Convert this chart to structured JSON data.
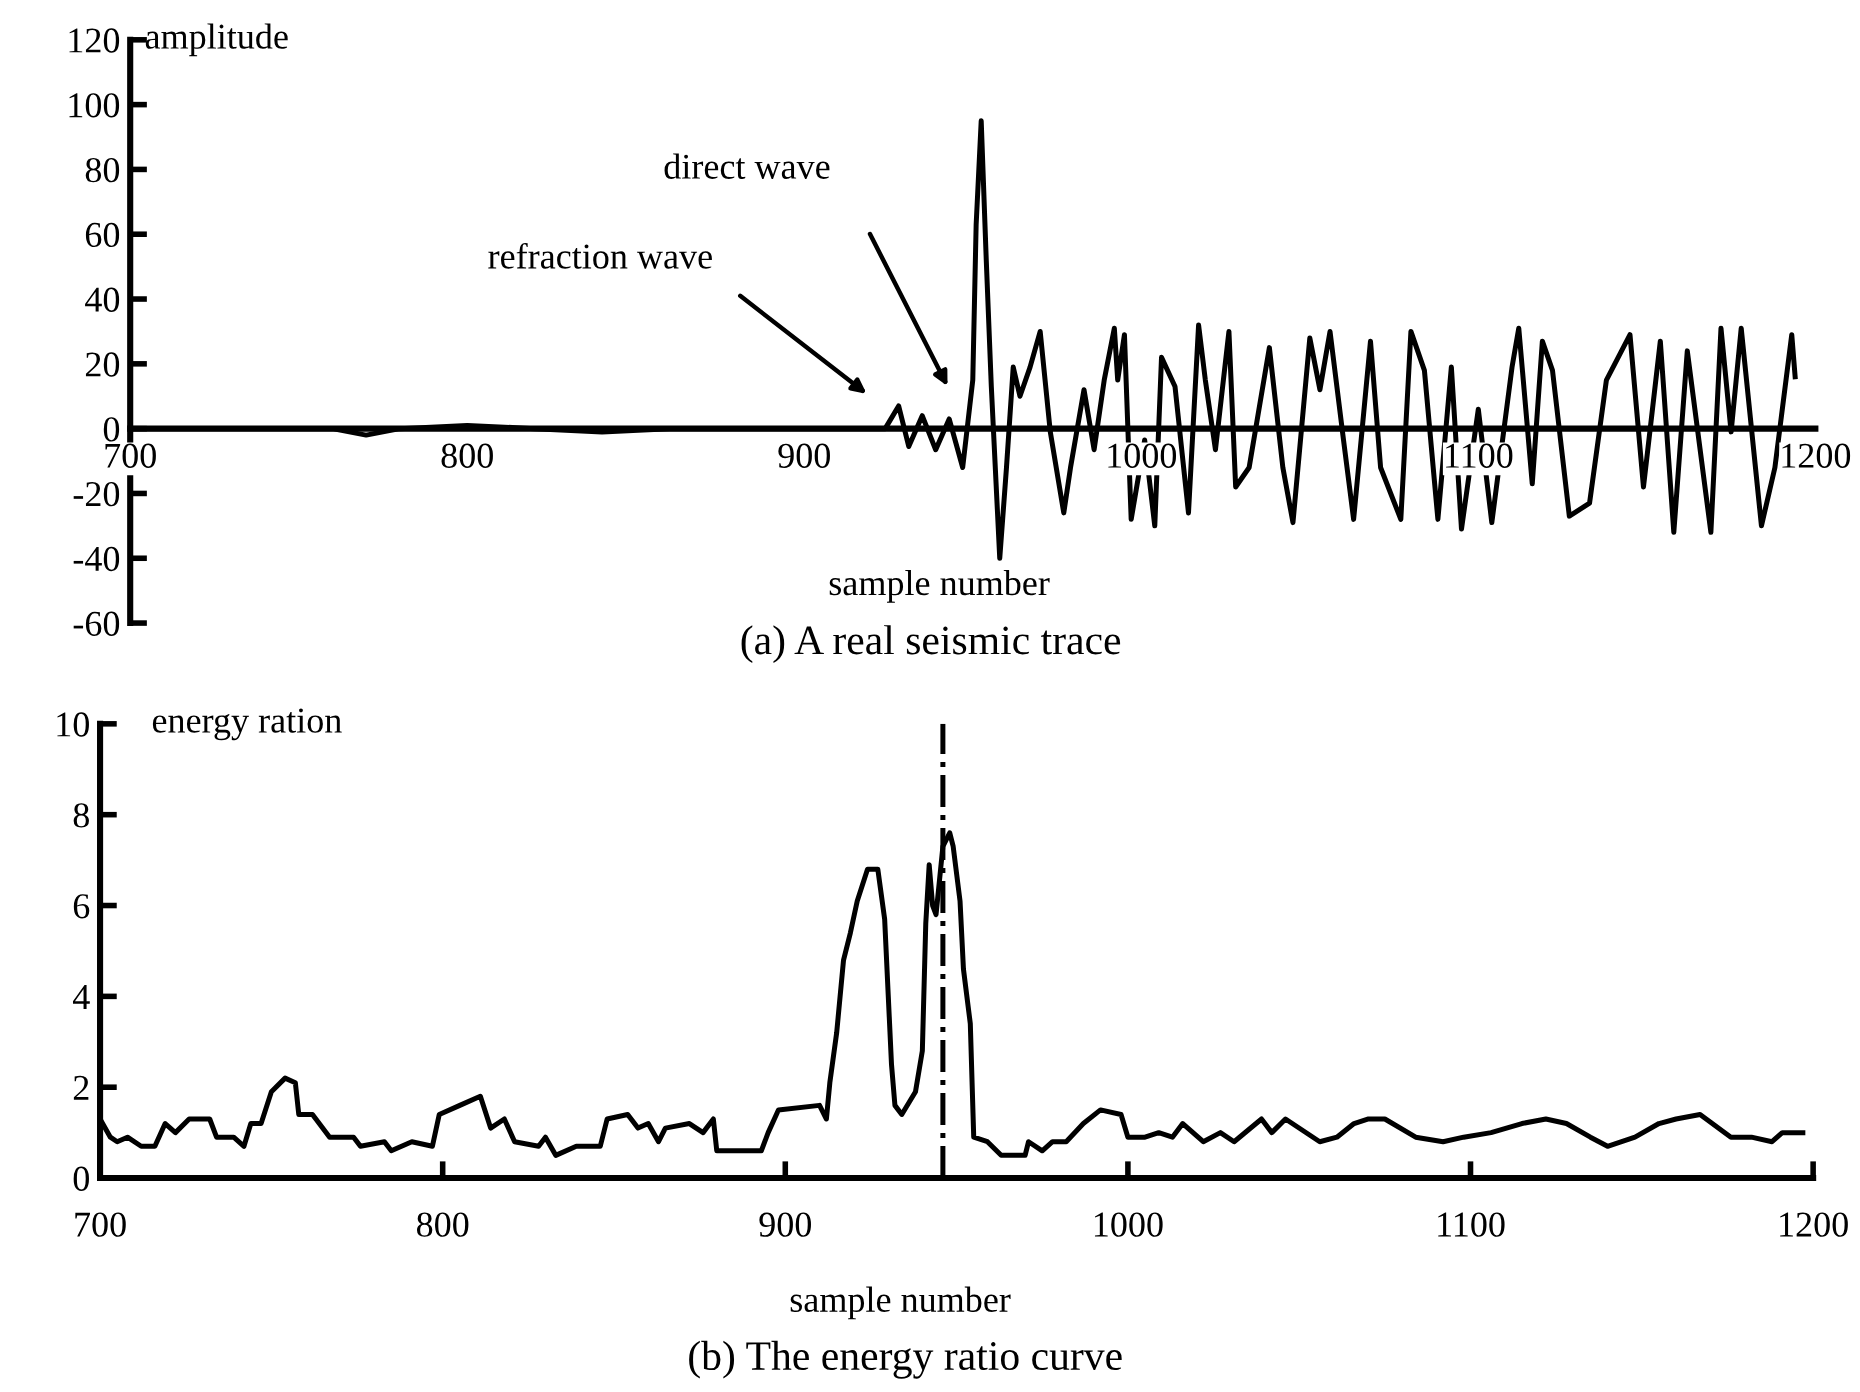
{
  "chart_data": [
    {
      "type": "line",
      "title": "(a) A real seismic trace",
      "xlabel": "sample number",
      "ylabel": "amplitude",
      "xlim": [
        700,
        1200
      ],
      "xticks": [
        700,
        800,
        900,
        1000,
        1100,
        1200
      ],
      "ylim": [
        -60,
        120
      ],
      "yticks": [
        {
          "value": -60,
          "label": "-60"
        },
        {
          "value": -40,
          "label": "-40"
        },
        {
          "value": -20,
          "label": "-20"
        },
        0,
        20,
        40,
        60,
        80,
        100,
        120
      ],
      "grid": false,
      "legend": false,
      "marker": "none",
      "line_style": "solid",
      "annotations": [
        "refraction wave",
        "direct wave"
      ],
      "series": [
        {
          "color": "#000000",
          "x": [
            700,
            720,
            740,
            760,
            770,
            780,
            800,
            820,
            840,
            860,
            880,
            900,
            924,
            928,
            931,
            935,
            939,
            943,
            947,
            950,
            951,
            952.5,
            954,
            955.5,
            958,
            960,
            962,
            964,
            967,
            970,
            973,
            977,
            979,
            983,
            986,
            989,
            992,
            993,
            995,
            997,
            1001,
            1004,
            1006,
            1010,
            1014,
            1017,
            1019,
            1022,
            1026,
            1028,
            1032,
            1038,
            1042,
            1045,
            1050,
            1053,
            1056,
            1060,
            1063,
            1068,
            1071,
            1077,
            1080,
            1084,
            1088,
            1092,
            1095,
            1100,
            1104,
            1110,
            1112,
            1116,
            1119,
            1122,
            1127,
            1133,
            1138,
            1145,
            1149,
            1154,
            1158,
            1162,
            1169,
            1172,
            1175,
            1178,
            1184,
            1188,
            1193,
            1194
          ],
          "values": [
            0,
            0,
            0,
            0,
            -2,
            0,
            1,
            0,
            -1,
            0,
            0,
            0,
            0,
            7,
            -5.5,
            4,
            -6.5,
            3,
            -12,
            15,
            63,
            95,
            52,
            13,
            -40,
            -12,
            19,
            10,
            19,
            30,
            -1,
            -26,
            -12,
            12,
            -6.5,
            15,
            31,
            15,
            29,
            -28,
            -3.5,
            -30,
            22,
            13,
            -26,
            32,
            15,
            -6.5,
            30,
            -18,
            -12,
            25,
            -12,
            -29,
            28,
            12,
            30,
            -3.5,
            -28,
            27,
            -12,
            -28,
            30,
            18,
            -28,
            19,
            -31,
            6,
            -29,
            19,
            31,
            -17,
            27,
            18,
            -27,
            -23,
            15,
            29,
            -18,
            27,
            -32,
            24,
            -32,
            31,
            -1,
            31,
            -30,
            -12,
            29,
            16
          ]
        }
      ]
    },
    {
      "type": "line",
      "title": "(b) The energy ratio curve",
      "xlabel": "sample number",
      "ylabel": "energy ration",
      "xlim": [
        700,
        1200
      ],
      "xticks": [
        700,
        800,
        900,
        1000,
        1100,
        1200
      ],
      "ylim": [
        0,
        10
      ],
      "yticks": [
        0,
        2,
        4,
        6,
        8,
        10
      ],
      "grid": false,
      "legend": false,
      "marker": "none",
      "line_style": "solid",
      "ref_lines": [
        {
          "axis": "x",
          "value": 946,
          "line_style": "dashdot",
          "color": "#000000"
        }
      ],
      "series": [
        {
          "color": "#000000",
          "x": [
            700,
            703,
            705,
            708,
            712,
            716,
            719,
            722,
            726,
            732,
            734,
            739,
            742,
            744,
            747,
            750,
            754,
            757,
            758,
            762,
            767,
            774,
            776,
            783,
            785,
            791,
            797,
            799,
            805,
            811,
            814,
            818,
            821,
            828,
            830,
            833,
            839,
            846,
            848,
            854,
            857,
            860,
            863,
            865,
            872,
            876,
            879,
            880,
            893,
            895,
            898,
            910,
            912,
            913,
            915,
            917,
            919,
            921,
            924,
            927,
            929,
            931,
            932,
            934,
            938,
            940,
            941,
            942,
            943,
            944,
            946,
            948,
            949,
            951,
            952,
            954,
            955,
            959,
            963,
            970,
            971,
            975,
            978,
            982,
            987,
            992,
            998,
            1000,
            1005,
            1009,
            1013,
            1016,
            1022,
            1027,
            1031,
            1039,
            1042,
            1046,
            1056,
            1061,
            1066,
            1070,
            1075,
            1084,
            1092,
            1098,
            1106,
            1115,
            1122,
            1128,
            1135,
            1140,
            1148,
            1155,
            1160,
            1167,
            1176,
            1182,
            1188,
            1191,
            1197
          ],
          "values": [
            1.3,
            0.9,
            0.8,
            0.9,
            0.7,
            0.7,
            1.2,
            1.0,
            1.3,
            1.3,
            0.9,
            0.9,
            0.7,
            1.2,
            1.2,
            1.9,
            2.2,
            2.1,
            1.4,
            1.4,
            0.9,
            0.9,
            0.7,
            0.8,
            0.6,
            0.8,
            0.7,
            1.4,
            1.6,
            1.8,
            1.1,
            1.3,
            0.8,
            0.7,
            0.9,
            0.5,
            0.7,
            0.7,
            1.3,
            1.4,
            1.1,
            1.2,
            0.8,
            1.1,
            1.2,
            1.0,
            1.3,
            0.6,
            0.6,
            1.0,
            1.5,
            1.6,
            1.3,
            2.1,
            3.2,
            4.8,
            5.4,
            6.1,
            6.8,
            6.8,
            5.7,
            2.5,
            1.6,
            1.4,
            1.9,
            2.8,
            5.6,
            6.9,
            6.0,
            5.8,
            7.3,
            7.6,
            7.3,
            6.1,
            4.6,
            3.4,
            0.9,
            0.8,
            0.5,
            0.5,
            0.8,
            0.6,
            0.8,
            0.8,
            1.2,
            1.5,
            1.4,
            0.9,
            0.9,
            1.0,
            0.9,
            1.2,
            0.8,
            1.0,
            0.8,
            1.3,
            1.0,
            1.3,
            0.8,
            0.9,
            1.2,
            1.3,
            1.3,
            0.9,
            0.8,
            0.9,
            1.0,
            1.2,
            1.3,
            1.2,
            0.9,
            0.7,
            0.9,
            1.2,
            1.3,
            1.4,
            0.9,
            0.9,
            0.8,
            1.0,
            1.0
          ]
        }
      ]
    }
  ]
}
